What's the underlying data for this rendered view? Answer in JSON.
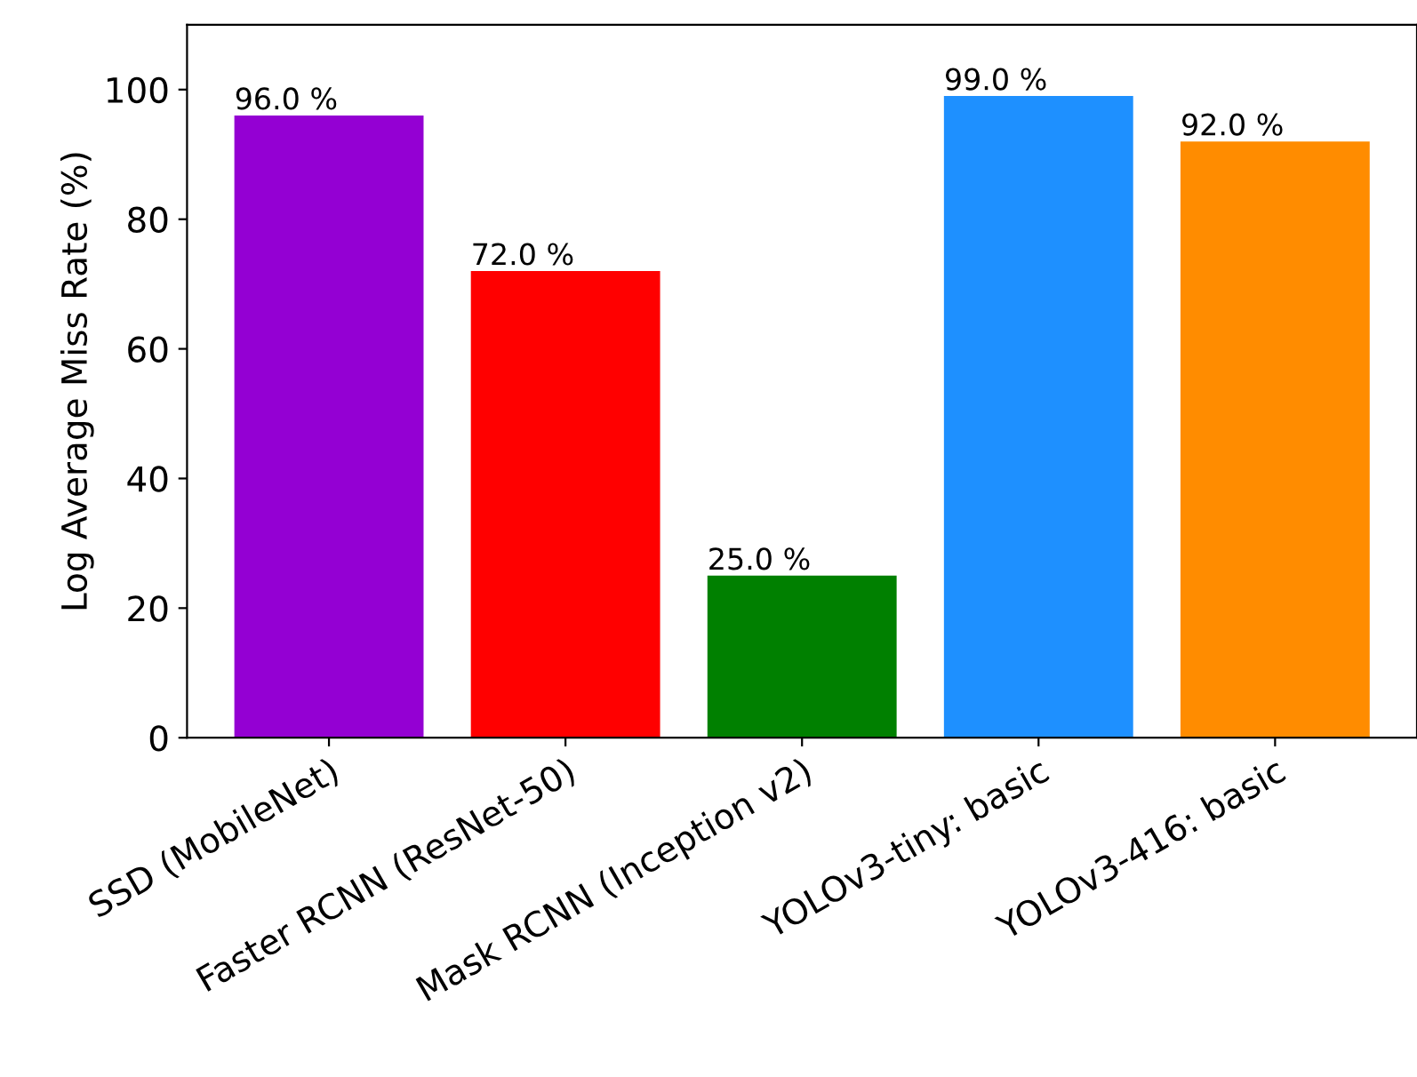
{
  "chart_data": {
    "type": "bar",
    "ylabel": "Log Average Miss Rate (%)",
    "categories": [
      "SSD (MobileNet)",
      "Faster RCNN (ResNet-50)",
      "Mask RCNN (Inception v2)",
      "YOLOv3-tiny: basic",
      "YOLOv3-416: basic"
    ],
    "values": [
      96.0,
      72.0,
      25.0,
      99.0,
      92.0
    ],
    "colors": [
      "#9400d3",
      "#ff0000",
      "#008000",
      "#1e90ff",
      "#ff8c00"
    ],
    "value_labels": [
      "96.0 %",
      "72.0 %",
      "25.0 %",
      "99.0 %",
      "92.0 %"
    ],
    "ylim": [
      0,
      110
    ],
    "yticks": [
      0,
      20,
      40,
      60,
      80,
      100
    ],
    "grid": false
  }
}
